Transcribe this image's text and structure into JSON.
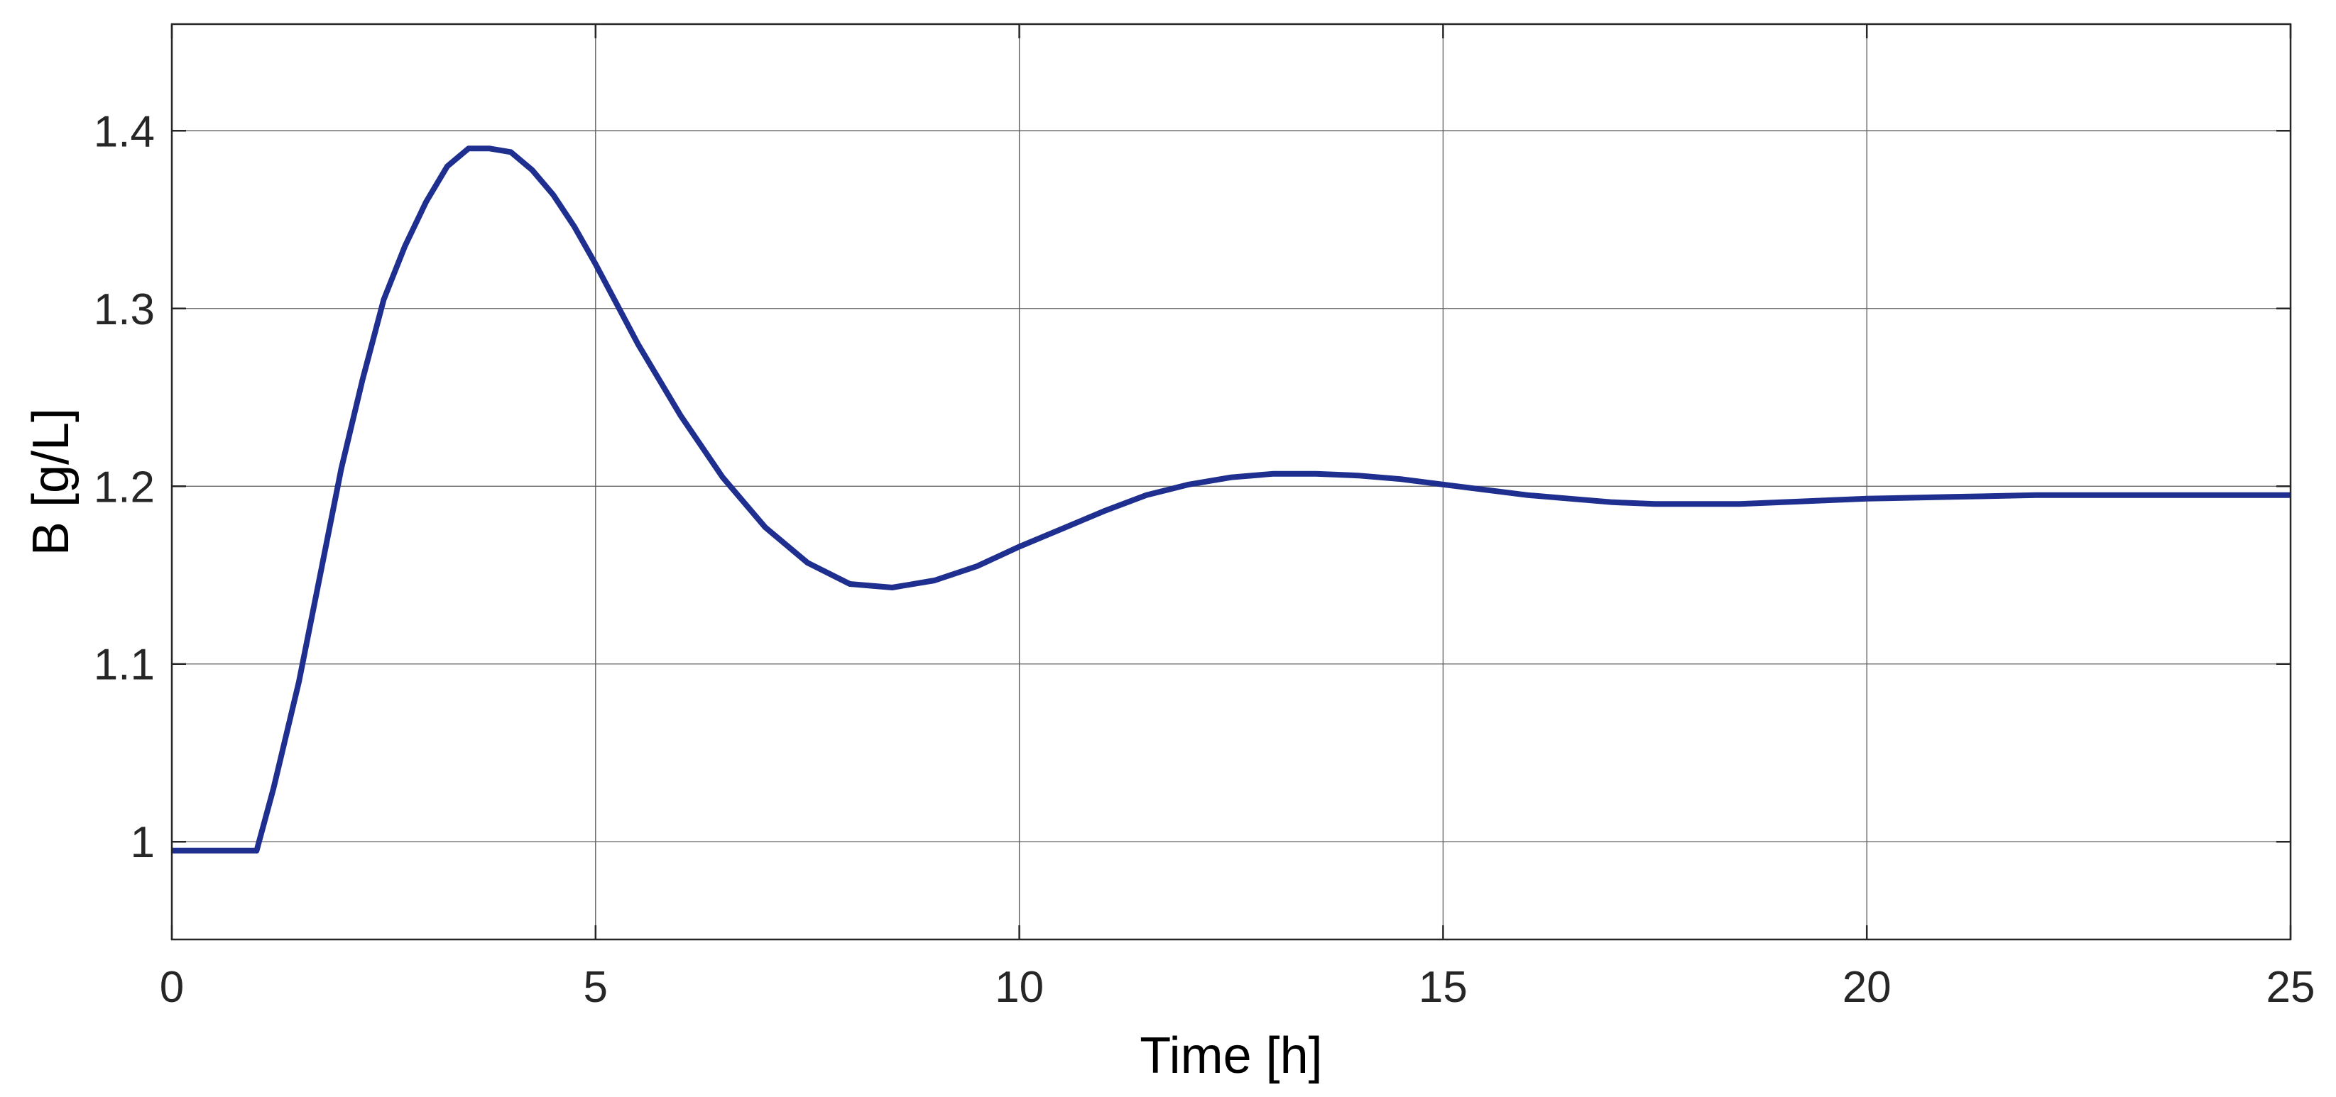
{
  "chart_data": {
    "type": "line",
    "xlabel": "Time [h]",
    "ylabel": "B [g/L]",
    "xlim": [
      0,
      25
    ],
    "ylim": [
      0.945,
      1.46
    ],
    "xticks": [
      0,
      5,
      10,
      15,
      20,
      25
    ],
    "yticks": [
      1,
      1.1,
      1.2,
      1.3,
      1.4
    ],
    "xtick_labels": [
      "0",
      "5",
      "10",
      "15",
      "20",
      "25"
    ],
    "ytick_labels": [
      "1",
      "1.1",
      "1.2",
      "1.3",
      "1.4"
    ],
    "grid": true,
    "line_color": "#1f2f8f",
    "series": [
      {
        "x": [
          0,
          0.5,
          1.0,
          1.2,
          1.5,
          1.75,
          2.0,
          2.25,
          2.5,
          2.75,
          3.0,
          3.25,
          3.5,
          3.75,
          4.0,
          4.25,
          4.5,
          4.75,
          5.0,
          5.5,
          6.0,
          6.5,
          7.0,
          7.5,
          8.0,
          8.5,
          9.0,
          9.5,
          10.0,
          10.5,
          11.0,
          11.5,
          12.0,
          12.5,
          13.0,
          13.5,
          14.0,
          14.5,
          15.0,
          15.5,
          16.0,
          16.5,
          17.0,
          17.5,
          18.0,
          18.5,
          19.0,
          19.5,
          20.0,
          21.0,
          22.0,
          23.0,
          24.0,
          25.0
        ],
        "y": [
          0.995,
          0.995,
          0.995,
          1.03,
          1.09,
          1.15,
          1.21,
          1.26,
          1.305,
          1.335,
          1.36,
          1.38,
          1.39,
          1.39,
          1.388,
          1.378,
          1.364,
          1.346,
          1.325,
          1.28,
          1.24,
          1.205,
          1.177,
          1.157,
          1.145,
          1.143,
          1.147,
          1.155,
          1.166,
          1.176,
          1.186,
          1.195,
          1.201,
          1.205,
          1.207,
          1.207,
          1.206,
          1.204,
          1.201,
          1.198,
          1.195,
          1.193,
          1.191,
          1.19,
          1.19,
          1.19,
          1.191,
          1.192,
          1.193,
          1.194,
          1.195,
          1.195,
          1.195,
          1.195
        ]
      }
    ]
  }
}
